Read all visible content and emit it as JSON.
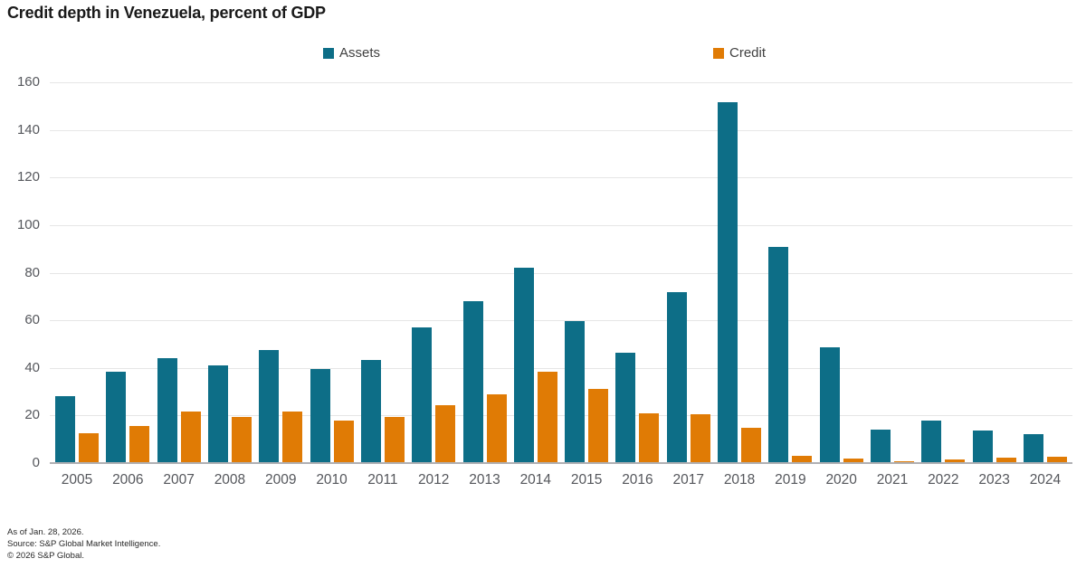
{
  "title": "Credit depth in Venezuela, percent of GDP",
  "legend": {
    "assets_label": "Assets",
    "credit_label": "Credit"
  },
  "footer": {
    "as_of": "As of Jan. 28, 2026.",
    "source": "Source: S&P Global Market Intelligence.",
    "copyright": "© 2026 S&P Global."
  },
  "colors": {
    "assets": "#0d6e87",
    "credit": "#e07b05",
    "gridline": "#e6e6e6",
    "axis_line": "#b0b0b3",
    "tick_text": "#55575c"
  },
  "chart_data": {
    "type": "bar",
    "title": "Credit depth in Venezuela, percent of GDP",
    "xlabel": "",
    "ylabel": "percent of GDP",
    "categories": [
      "2005",
      "2006",
      "2007",
      "2008",
      "2009",
      "2010",
      "2011",
      "2012",
      "2013",
      "2014",
      "2015",
      "2016",
      "2017",
      "2018",
      "2019",
      "2020",
      "2021",
      "2022",
      "2023",
      "2024"
    ],
    "series": [
      {
        "name": "Assets",
        "color": "#0d6e87",
        "values": [
          28,
          38.5,
          44,
          41,
          47.5,
          39.5,
          43.5,
          57,
          68,
          82,
          59.5,
          46.5,
          72,
          151.5,
          91,
          48.5,
          14,
          18,
          13.5,
          12
        ]
      },
      {
        "name": "Credit",
        "color": "#e07b05",
        "values": [
          12.5,
          15.5,
          21.5,
          19.5,
          21.5,
          18,
          19.5,
          24.5,
          29,
          38.5,
          31,
          21,
          20.5,
          15,
          3,
          2,
          0.7,
          1.5,
          2.2,
          2.7
        ]
      }
    ],
    "ylim": [
      0,
      160
    ],
    "yticks": [
      0,
      20,
      40,
      60,
      80,
      100,
      120,
      140,
      160
    ],
    "grid": true,
    "legend_position": "top"
  }
}
